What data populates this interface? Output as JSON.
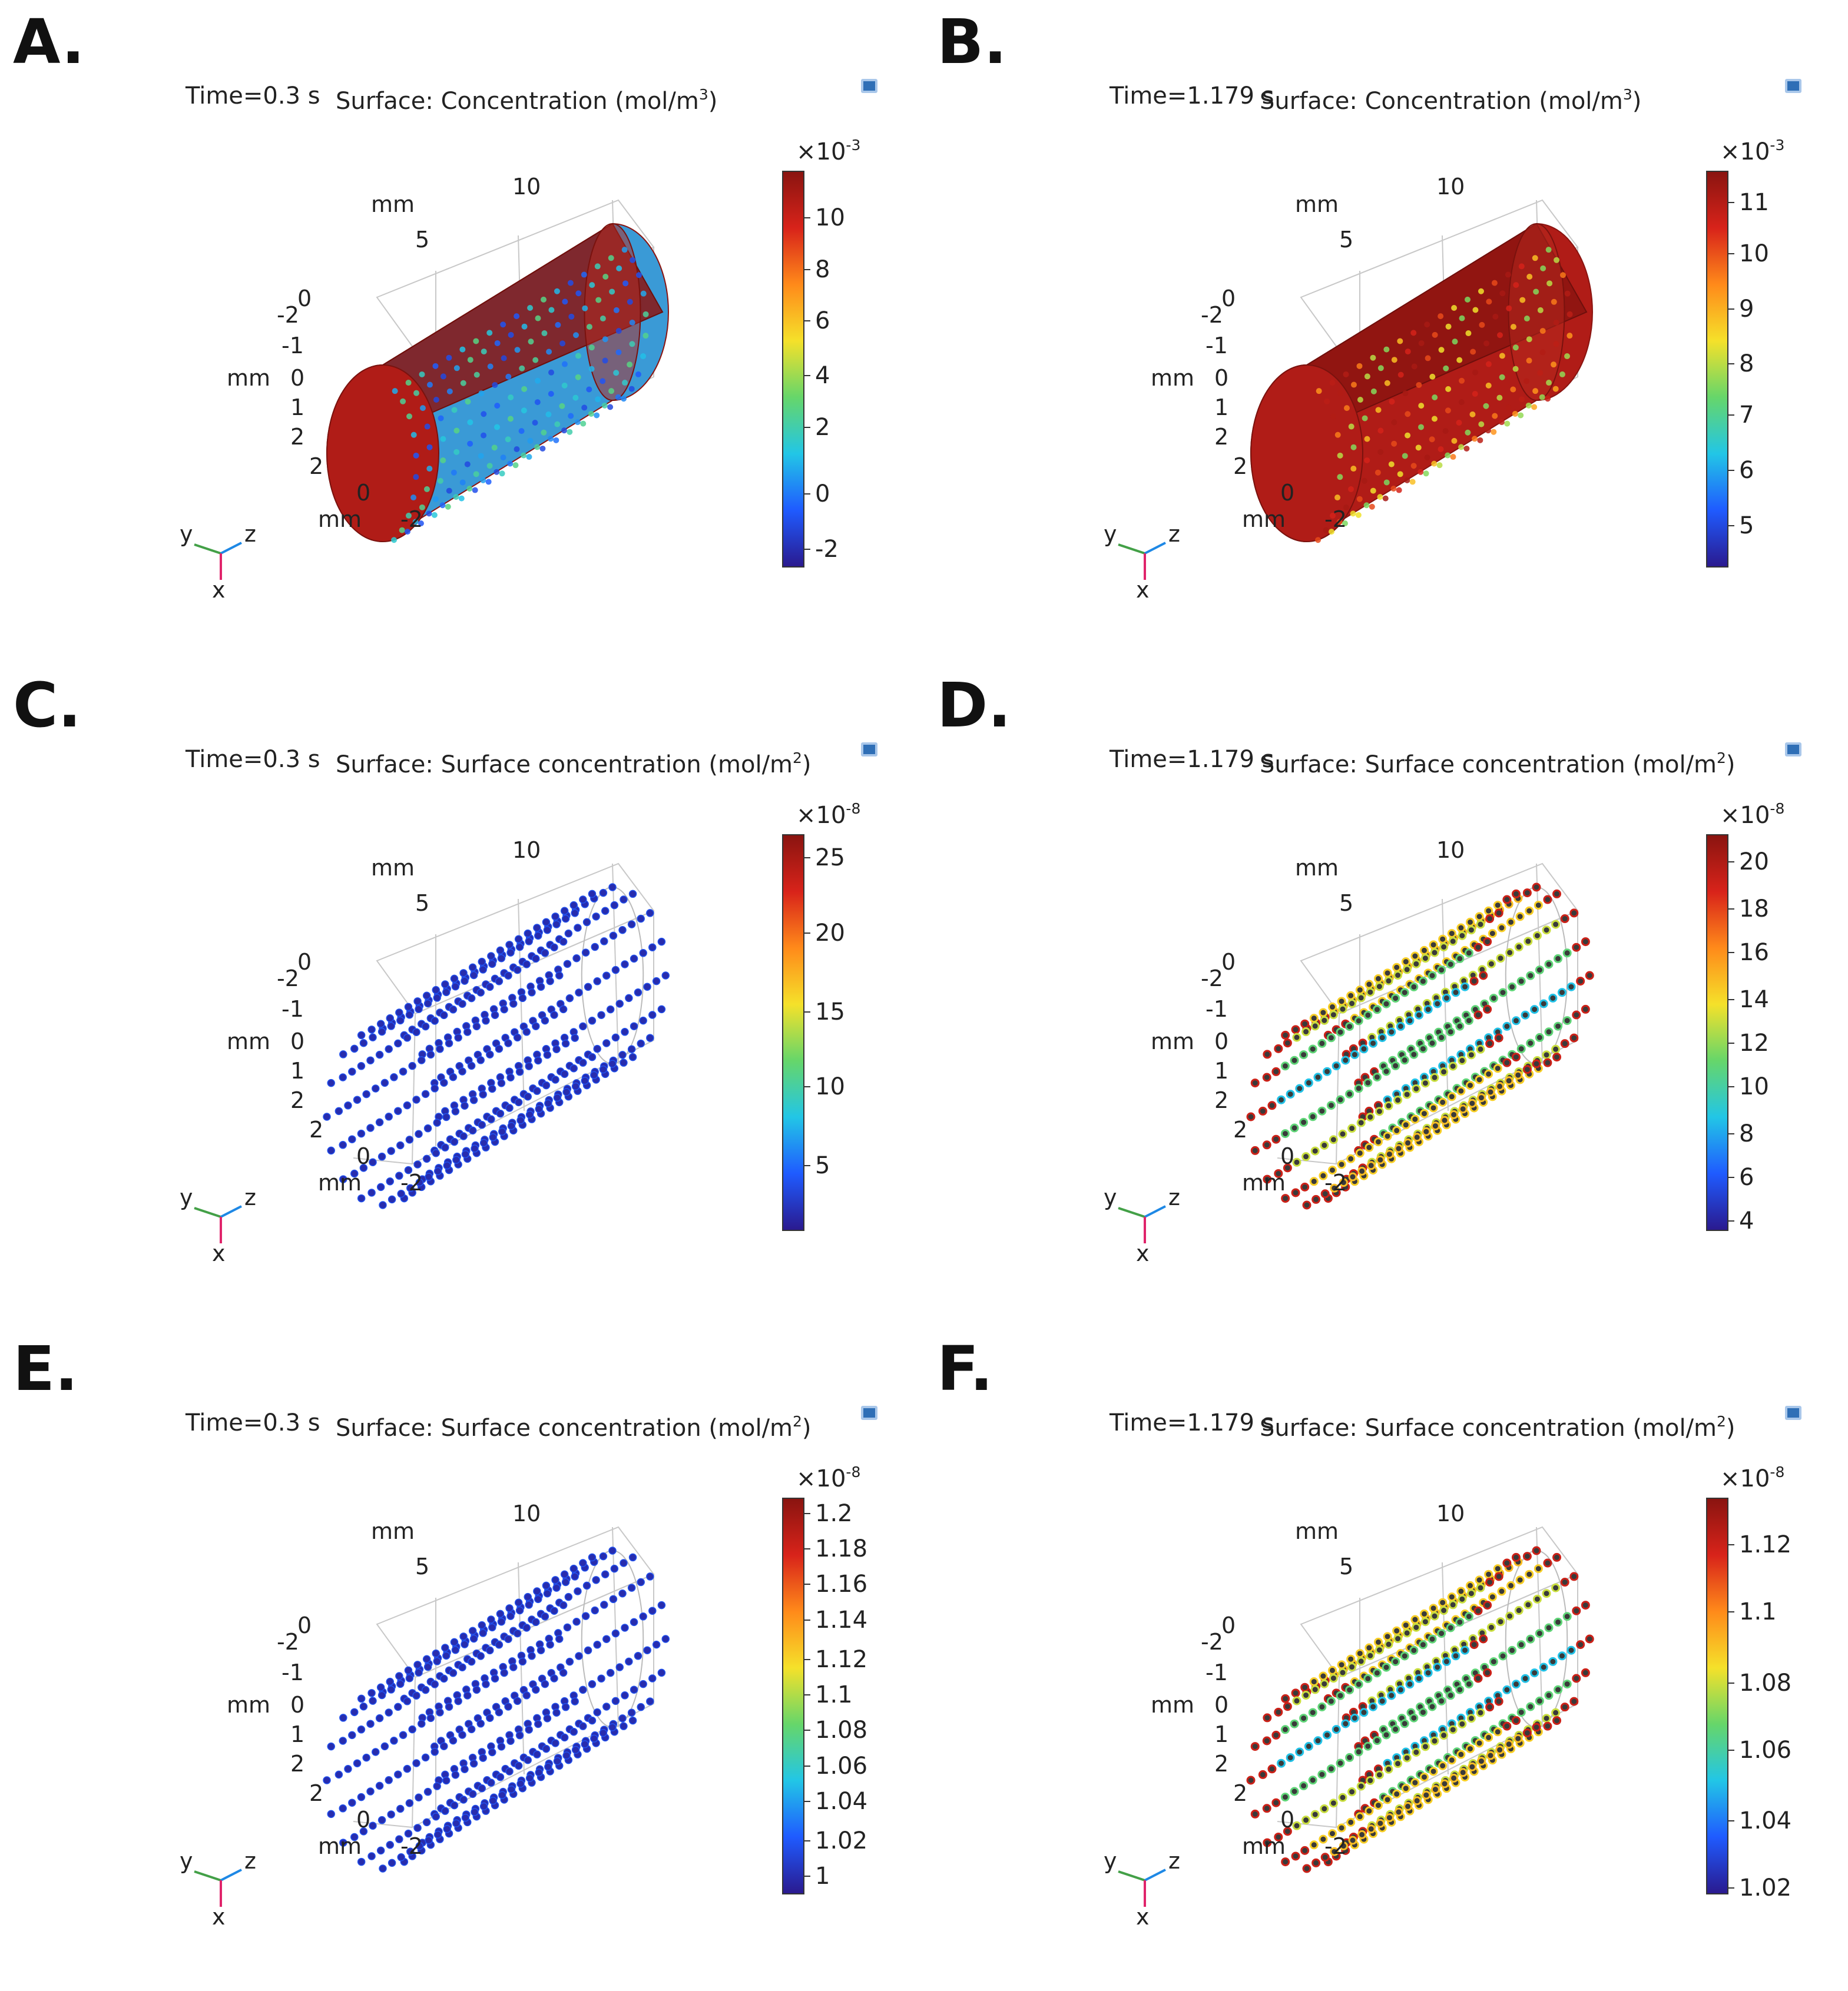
{
  "colors": {
    "background": "#ffffff",
    "colormap": [
      "#2a1a8f",
      "#1f5bff",
      "#22c6e6",
      "#66d66a",
      "#f5e12a",
      "#ff8a1a",
      "#d8231a",
      "#8a1410"
    ],
    "axis_x_arrow": "#e0246b",
    "axis_y_arrow": "#43a047",
    "axis_z_arrow": "#1e88e5"
  },
  "panels": [
    {
      "letter": "A.",
      "time": "Time=0.3 s",
      "title": "Surface: Concentration (mol/m",
      "unit_exp": "3",
      "scale_exp": "-3",
      "mode": "volume_early",
      "ticks": [
        "10",
        "8",
        "6",
        "4",
        "2",
        "0",
        "-2"
      ],
      "tick_positions": [
        0.88,
        0.75,
        0.62,
        0.48,
        0.35,
        0.18,
        0.04
      ],
      "axes": {
        "mm1": "mm",
        "t10": "10",
        "t5": "5",
        "t0": "0",
        "tm2": "-2",
        "tm1": "-1",
        "mm2": "mm",
        "c0": "0",
        "c1": "1",
        "c2": "2",
        "b2": "2",
        "b0": "0",
        "mm3": "mm",
        "bm2": "-2",
        "ax_y": "y",
        "ax_z": "z",
        "ax_x": "x"
      }
    },
    {
      "letter": "B.",
      "time": "Time=1.179 s",
      "title": "Surface: Concentration (mol/m",
      "unit_exp": "3",
      "scale_exp": "-3",
      "mode": "volume_late",
      "ticks": [
        "11",
        "10",
        "9",
        "8",
        "7",
        "6",
        "5"
      ],
      "tick_positions": [
        0.92,
        0.79,
        0.65,
        0.51,
        0.38,
        0.24,
        0.1
      ],
      "axes": {
        "mm1": "mm",
        "t10": "10",
        "t5": "5",
        "t0": "0",
        "tm2": "-2",
        "tm1": "-1",
        "mm2": "mm",
        "c0": "0",
        "c1": "1",
        "c2": "2",
        "b2": "2",
        "b0": "0",
        "mm3": "mm",
        "bm2": "-2",
        "ax_y": "y",
        "ax_z": "z",
        "ax_x": "x"
      }
    },
    {
      "letter": "C.",
      "time": "Time=0.3 s",
      "title": "Surface: Surface concentration (mol/m",
      "unit_exp": "2",
      "scale_exp": "-8",
      "mode": "dots_low",
      "ticks": [
        "25",
        "20",
        "15",
        "10",
        "5"
      ],
      "tick_positions": [
        0.94,
        0.75,
        0.55,
        0.36,
        0.16
      ],
      "axes": {
        "mm1": "mm",
        "t10": "10",
        "t5": "5",
        "t0": "0",
        "tm2": "-2",
        "tm1": "-1",
        "mm2": "mm",
        "c0": "0",
        "c1": "1",
        "c2": "2",
        "b2": "2",
        "b0": "0",
        "mm3": "mm",
        "bm2": "-2",
        "ax_y": "y",
        "ax_z": "z",
        "ax_x": "x"
      }
    },
    {
      "letter": "D.",
      "time": "Time=1.179 s",
      "title": "Surface: Surface concentration (mol/m",
      "unit_exp": "2",
      "scale_exp": "-8",
      "mode": "dots_high",
      "ticks": [
        "20",
        "18",
        "16",
        "14",
        "12",
        "10",
        "8",
        "6",
        "4"
      ],
      "tick_positions": [
        0.93,
        0.81,
        0.7,
        0.58,
        0.47,
        0.36,
        0.24,
        0.13,
        0.02
      ],
      "axes": {
        "mm1": "mm",
        "t10": "10",
        "t5": "5",
        "t0": "0",
        "tm2": "-2",
        "tm1": "-1",
        "mm2": "mm",
        "c0": "0",
        "c1": "1",
        "c2": "2",
        "b2": "2",
        "b0": "0",
        "mm3": "mm",
        "bm2": "-2",
        "ax_y": "y",
        "ax_z": "z",
        "ax_x": "x"
      }
    },
    {
      "letter": "E.",
      "time": "Time=0.3 s",
      "title": "Surface: Surface concentration (mol/m",
      "unit_exp": "2",
      "scale_exp": "-8",
      "mode": "dots_low",
      "ticks": [
        "1.2",
        "1.18",
        "1.16",
        "1.14",
        "1.12",
        "1.1",
        "1.08",
        "1.06",
        "1.04",
        "1.02",
        "1"
      ],
      "tick_positions": [
        0.96,
        0.87,
        0.78,
        0.69,
        0.59,
        0.5,
        0.41,
        0.32,
        0.23,
        0.13,
        0.04
      ],
      "axes": {
        "mm1": "mm",
        "t10": "10",
        "t5": "5",
        "t0": "0",
        "tm2": "-2",
        "tm1": "-1",
        "mm2": "mm",
        "c0": "0",
        "c1": "1",
        "c2": "2",
        "b2": "2",
        "b0": "0",
        "mm3": "mm",
        "bm2": "-2",
        "ax_y": "y",
        "ax_z": "z",
        "ax_x": "x"
      }
    },
    {
      "letter": "F.",
      "time": "Time=1.179 s",
      "title": "Surface: Surface concentration (mol/m",
      "unit_exp": "2",
      "scale_exp": "-8",
      "mode": "dots_high",
      "ticks": [
        "1.12",
        "1.1",
        "1.08",
        "1.06",
        "1.04",
        "1.02"
      ],
      "tick_positions": [
        0.88,
        0.71,
        0.53,
        0.36,
        0.18,
        0.01
      ],
      "axes": {
        "mm1": "mm",
        "t10": "10",
        "t5": "5",
        "t0": "0",
        "tm2": "-2",
        "tm1": "-1",
        "mm2": "mm",
        "c0": "0",
        "c1": "1",
        "c2": "2",
        "b2": "2",
        "b0": "0",
        "mm3": "mm",
        "bm2": "-2",
        "ax_y": "y",
        "ax_z": "z",
        "ax_x": "x"
      }
    }
  ]
}
